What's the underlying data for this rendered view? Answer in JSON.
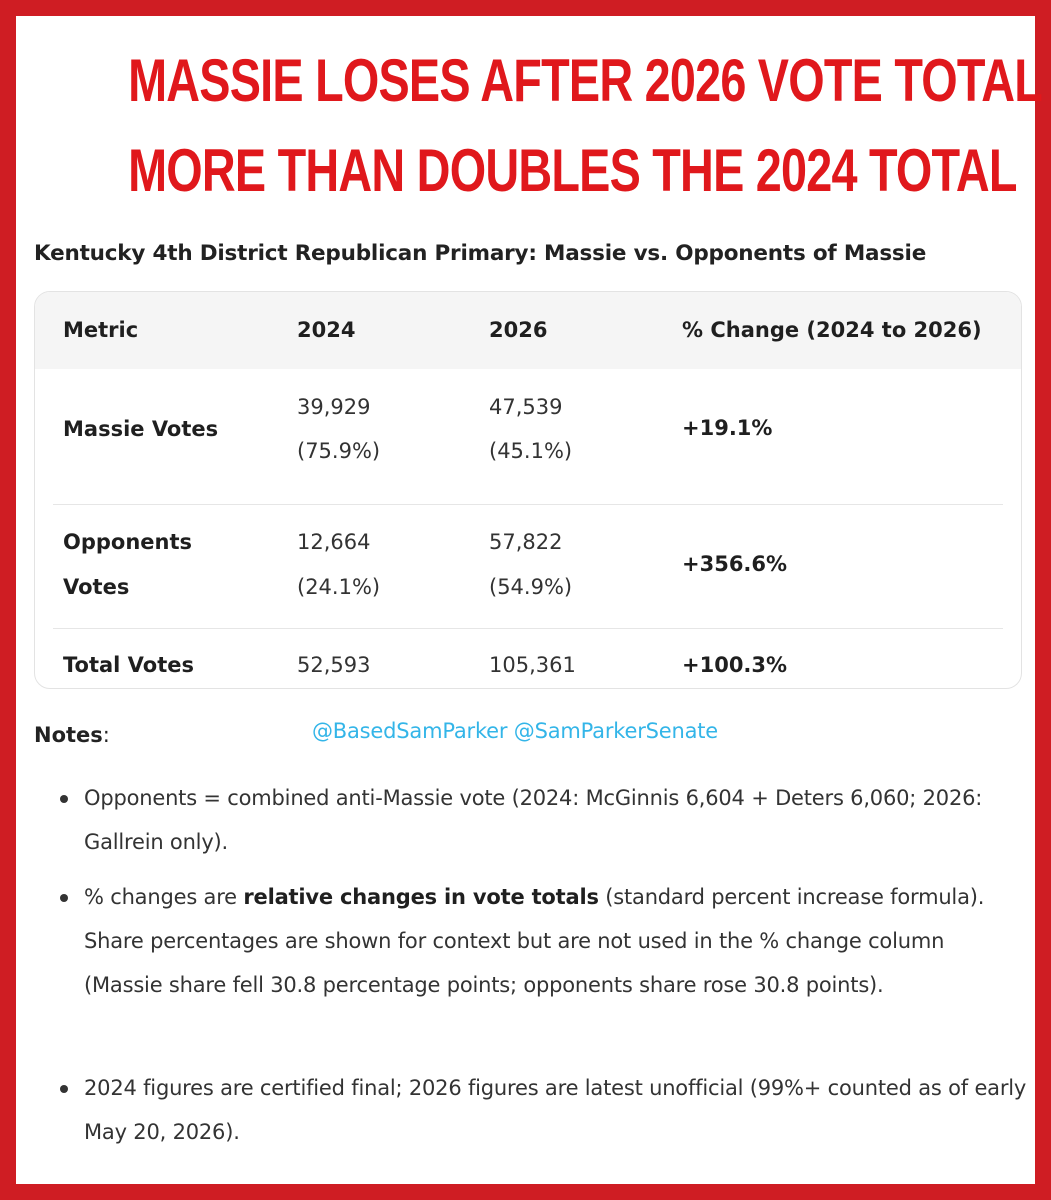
{
  "headline": {
    "line1": "MASSIE LOSES AFTER 2026 VOTE TOTAL",
    "line2": "MORE THAN DOUBLES THE 2024 TOTAL"
  },
  "subtitle": "Kentucky 4th District Republican Primary: Massie vs. Opponents of Massie",
  "table": {
    "headers": [
      "Metric",
      "2024",
      "2026",
      "% Change (2024 to 2026)"
    ],
    "rows": [
      {
        "metric_line1": "Massie Votes",
        "metric_line2": "",
        "v2024": "39,929",
        "s2024": "(75.9%)",
        "v2026": "47,539",
        "s2026": "(45.1%)",
        "change": "+19.1%"
      },
      {
        "metric_line1": "Opponents",
        "metric_line2": "Votes",
        "v2024": "12,664",
        "s2024": "(24.1%)",
        "v2026": "57,822",
        "s2026": "(54.9%)",
        "change": "+356.6%"
      },
      {
        "metric_line1": "Total Votes",
        "metric_line2": "",
        "v2024": "52,593",
        "s2024": "",
        "v2026": "105,361",
        "s2026": "",
        "change": "+100.3%"
      }
    ]
  },
  "notes": {
    "title": "Notes",
    "colon": ":",
    "handles": "@BasedSamParker @SamParkerSenate",
    "items": [
      {
        "pre": "Opponents = combined anti-Massie vote (2024: McGinnis 6,604 + Deters 6,060; 2026: Gallrein only).",
        "bold": "",
        "post": ""
      },
      {
        "pre": "% changes are ",
        "bold": "relative changes in vote totals",
        "post": " (standard percent increase formula). Share percentages are shown for context but are not used in the % change column (Massie share fell 30.8 percentage points; opponents share rose 30.8 points)."
      },
      {
        "pre": "2024 figures are certified final; 2026 figures are latest unofficial (99%+ counted as of early May 20, 2026).",
        "bold": "",
        "post": ""
      }
    ]
  },
  "colors": {
    "border_red": "#cf1d23",
    "headline_red": "#e0181c",
    "handle_blue": "#33b5e8"
  }
}
